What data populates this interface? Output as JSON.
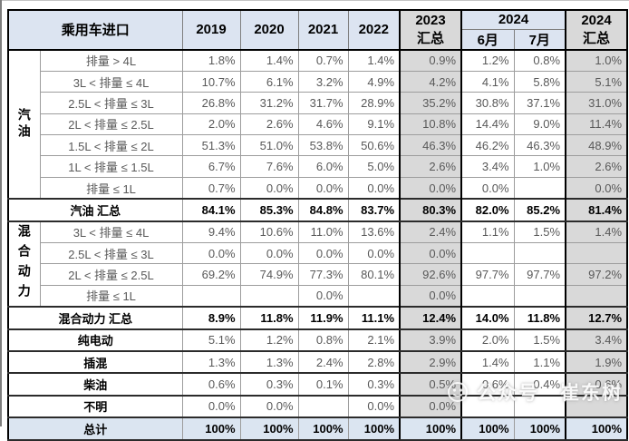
{
  "chart_data": {
    "type": "table",
    "title": "乘用车进口",
    "header": {
      "title": "乘用车进口",
      "years": [
        "2019",
        "2020",
        "2021",
        "2022"
      ],
      "col_2023_total": {
        "line1": "2023",
        "line2": "汇总"
      },
      "group_2024": "2024",
      "months": [
        "6月",
        "7月"
      ],
      "col_2024_total": {
        "line1": "2024",
        "line2": "汇总"
      }
    },
    "columns": [
      "2019",
      "2020",
      "2021",
      "2022",
      "2023汇总",
      "2024年6月",
      "2024年7月",
      "2024汇总"
    ],
    "rows": [
      {
        "group": "汽油",
        "group_span": 7,
        "label": "排量 > 4L",
        "values": [
          "1.8%",
          "1.4%",
          "0.7%",
          "1.4%",
          "0.9%",
          "1.2%",
          "0.8%",
          "1.0%"
        ]
      },
      {
        "label": "3L < 排量 ≤ 4L",
        "values": [
          "10.7%",
          "6.1%",
          "3.2%",
          "4.9%",
          "4.2%",
          "4.1%",
          "5.8%",
          "5.1%"
        ]
      },
      {
        "label": "2.5L < 排量 ≤ 3L",
        "values": [
          "26.8%",
          "31.2%",
          "31.7%",
          "28.9%",
          "35.2%",
          "30.8%",
          "37.1%",
          "31.0%"
        ]
      },
      {
        "label": "2L < 排量 ≤ 2.5L",
        "values": [
          "2.0%",
          "2.6%",
          "4.6%",
          "9.1%",
          "10.8%",
          "14.4%",
          "9.0%",
          "11.4%"
        ]
      },
      {
        "label": "1.5L < 排量 ≤ 2L",
        "values": [
          "51.3%",
          "51.0%",
          "53.8%",
          "50.6%",
          "46.3%",
          "46.2%",
          "46.3%",
          "48.9%"
        ]
      },
      {
        "label": "1L < 排量 ≤ 1.5L",
        "values": [
          "6.7%",
          "7.6%",
          "6.0%",
          "5.0%",
          "2.6%",
          "3.4%",
          "1.0%",
          "2.6%"
        ]
      },
      {
        "label": "排量 ≤ 1L",
        "values": [
          "0.7%",
          "0.0%",
          "0.0%",
          "0.0%",
          "0.0%",
          "0.0%",
          "",
          "0.0%"
        ]
      },
      {
        "label": "汽油 汇总",
        "category": true,
        "bold": true,
        "values": [
          "84.1%",
          "85.3%",
          "84.8%",
          "83.7%",
          "80.3%",
          "82.0%",
          "85.2%",
          "81.4%"
        ]
      },
      {
        "group": "混合动力",
        "group_span": 4,
        "label": "3L < 排量 ≤ 4L",
        "values": [
          "9.4%",
          "10.6%",
          "11.0%",
          "13.6%",
          "2.4%",
          "1.1%",
          "1.5%",
          "1.4%"
        ]
      },
      {
        "label": "2.5L < 排量 ≤ 3L",
        "values": [
          "0.0%",
          "0.0%",
          "0.0%",
          "0.0%",
          "0.0%",
          "",
          "",
          ""
        ]
      },
      {
        "label": "2L < 排量 ≤ 2.5L",
        "values": [
          "69.2%",
          "74.9%",
          "77.3%",
          "80.1%",
          "92.6%",
          "97.7%",
          "97.7%",
          "97.2%"
        ]
      },
      {
        "label": "排量 ≤ 1L",
        "values": [
          "",
          "",
          "0.0%",
          "",
          "0.0%",
          "",
          "",
          ""
        ]
      },
      {
        "label": "混合动力 汇总",
        "category": true,
        "bold": true,
        "values": [
          "8.9%",
          "11.8%",
          "11.9%",
          "11.1%",
          "12.4%",
          "14.0%",
          "11.8%",
          "12.7%"
        ]
      },
      {
        "label": "纯电动",
        "category": true,
        "values": [
          "5.1%",
          "1.2%",
          "0.8%",
          "2.1%",
          "3.9%",
          "2.0%",
          "1.5%",
          "3.4%"
        ]
      },
      {
        "label": "插混",
        "category": true,
        "values": [
          "1.3%",
          "1.3%",
          "2.4%",
          "2.8%",
          "2.9%",
          "1.4%",
          "1.1%",
          "1.9%"
        ]
      },
      {
        "label": "柴油",
        "category": true,
        "values": [
          "0.6%",
          "0.3%",
          "0.1%",
          "0.3%",
          "0.5%",
          "0.6%",
          "0.4%",
          "0.6%"
        ]
      },
      {
        "label": "不明",
        "category": true,
        "values": [
          "0.0%",
          "0.0%",
          "",
          "0.0%",
          "0.0%",
          "",
          "",
          ""
        ]
      },
      {
        "label": "总计",
        "category": true,
        "bold": true,
        "total": true,
        "values": [
          "100%",
          "100%",
          "100%",
          "100%",
          "100%",
          "100%",
          "100%",
          "100%"
        ]
      }
    ]
  },
  "watermark": {
    "prefix": "公众号",
    "name": "崔东树"
  },
  "colors": {
    "header_blue": "#dce4f1",
    "summary_gray": "#d9d9d9",
    "total_row_blue": "#dbe5f1",
    "value_text": "#595959",
    "border_dark": "#000000"
  }
}
